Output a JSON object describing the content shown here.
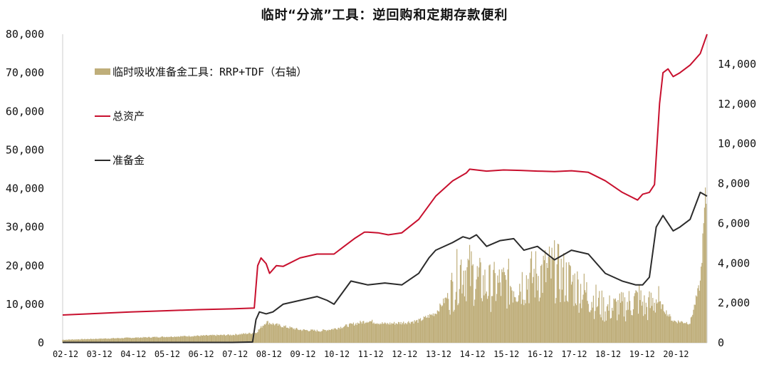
{
  "chart_data": {
    "type": "bar+line",
    "title": "临时“分流”工具：逆回购和定期存款便利",
    "xlabel": "",
    "ylabel": "",
    "x_tick_labels": [
      "02-12",
      "03-12",
      "04-12",
      "05-12",
      "06-12",
      "07-12",
      "08-12",
      "09-12",
      "10-12",
      "11-12",
      "12-12",
      "13-12",
      "14-12",
      "15-12",
      "16-12",
      "17-12",
      "18-12",
      "19-12",
      "20-12"
    ],
    "left_axis": {
      "ylim": [
        0,
        80000
      ],
      "tick_labels": [
        "0",
        "10,000",
        "20,000",
        "30,000",
        "40,000",
        "50,000",
        "60,000",
        "70,000",
        "80,000"
      ]
    },
    "right_axis": {
      "ylim": [
        0,
        15500
      ],
      "tick_labels": [
        "0",
        "2,000",
        "4,000",
        "6,000",
        "8,000",
        "10,000",
        "12,000",
        "14,000"
      ]
    },
    "grid": false,
    "legend_placement": "top-left",
    "series": [
      {
        "name": "临时吸收准备金工具：RRP+TDF（右轴）",
        "kind": "bar",
        "axis": "right",
        "color": "#bfae7a",
        "x": [
          2002.0,
          2003.0,
          2004.0,
          2005.0,
          2006.0,
          2007.0,
          2007.7,
          2008.0,
          2008.3,
          2009.0,
          2009.6,
          2010.0,
          2010.6,
          2011.0,
          2011.5,
          2012.0,
          2012.5,
          2013.0,
          2013.5,
          2013.75,
          2014.0,
          2014.3,
          2014.6,
          2015.0,
          2015.5,
          2016.0,
          2016.5,
          2017.0,
          2017.5,
          2018.0,
          2018.5,
          2019.0,
          2019.2,
          2019.5,
          2020.0,
          2020.5,
          2020.8,
          2020.95
        ],
        "values": [
          150,
          200,
          250,
          300,
          350,
          400,
          500,
          1050,
          900,
          650,
          600,
          700,
          950,
          1100,
          950,
          1000,
          1100,
          1500,
          2700,
          3800,
          3500,
          3000,
          2800,
          2900,
          3000,
          3400,
          3600,
          3000,
          2400,
          1700,
          1800,
          2200,
          1700,
          2200,
          1100,
          1000,
          3000,
          7200
        ]
      },
      {
        "name": "总资产",
        "kind": "line",
        "axis": "left",
        "color": "#c8102e",
        "x": [
          2002.0,
          2003.0,
          2004.0,
          2005.0,
          2006.0,
          2007.0,
          2007.65,
          2007.75,
          2007.85,
          2008.0,
          2008.1,
          2008.3,
          2008.5,
          2009.0,
          2009.5,
          2010.0,
          2010.3,
          2010.6,
          2010.9,
          2011.0,
          2011.3,
          2011.6,
          2012.0,
          2012.5,
          2013.0,
          2013.5,
          2013.9,
          2014.0,
          2014.5,
          2015.0,
          2015.5,
          2016.0,
          2016.5,
          2017.0,
          2017.5,
          2018.0,
          2018.5,
          2018.95,
          2019.1,
          2019.3,
          2019.45,
          2019.6,
          2019.7,
          2019.85,
          2020.0,
          2020.2,
          2020.5,
          2020.8,
          2021.0
        ],
        "values": [
          7200,
          7600,
          8000,
          8300,
          8600,
          8800,
          9000,
          20000,
          22000,
          20500,
          18000,
          20000,
          19800,
          22000,
          23000,
          23000,
          25000,
          27000,
          28700,
          28700,
          28500,
          28000,
          28500,
          32000,
          38000,
          42000,
          44000,
          45000,
          44500,
          44800,
          44700,
          44500,
          44400,
          44600,
          44200,
          42000,
          39000,
          37000,
          38500,
          39000,
          41000,
          62000,
          70000,
          71000,
          69000,
          70000,
          72000,
          75000,
          80000
        ]
      },
      {
        "name": "准备金",
        "kind": "line",
        "axis": "left",
        "color": "#2b2b2b",
        "x": [
          2002.0,
          2003.0,
          2004.0,
          2005.0,
          2006.0,
          2007.0,
          2007.6,
          2007.7,
          2007.8,
          2008.0,
          2008.2,
          2008.5,
          2009.0,
          2009.5,
          2009.8,
          2010.0,
          2010.5,
          2011.0,
          2011.5,
          2012.0,
          2012.5,
          2012.8,
          2013.0,
          2013.5,
          2013.8,
          2014.0,
          2014.2,
          2014.5,
          2014.9,
          2015.3,
          2015.6,
          2016.0,
          2016.5,
          2017.0,
          2017.5,
          2018.0,
          2018.5,
          2018.9,
          2019.1,
          2019.3,
          2019.5,
          2019.7,
          2020.0,
          2020.2,
          2020.5,
          2020.8,
          2021.0
        ],
        "values": [
          100,
          100,
          100,
          100,
          100,
          100,
          200,
          6000,
          8000,
          7500,
          8000,
          10000,
          11000,
          12000,
          11000,
          10000,
          16000,
          15000,
          15500,
          15000,
          18000,
          22000,
          24000,
          26000,
          27500,
          27000,
          28000,
          25000,
          26500,
          27000,
          24000,
          25000,
          21500,
          24000,
          23000,
          18000,
          16000,
          15000,
          15000,
          17000,
          30000,
          33000,
          29000,
          30000,
          32000,
          39000,
          38000
        ]
      }
    ]
  }
}
